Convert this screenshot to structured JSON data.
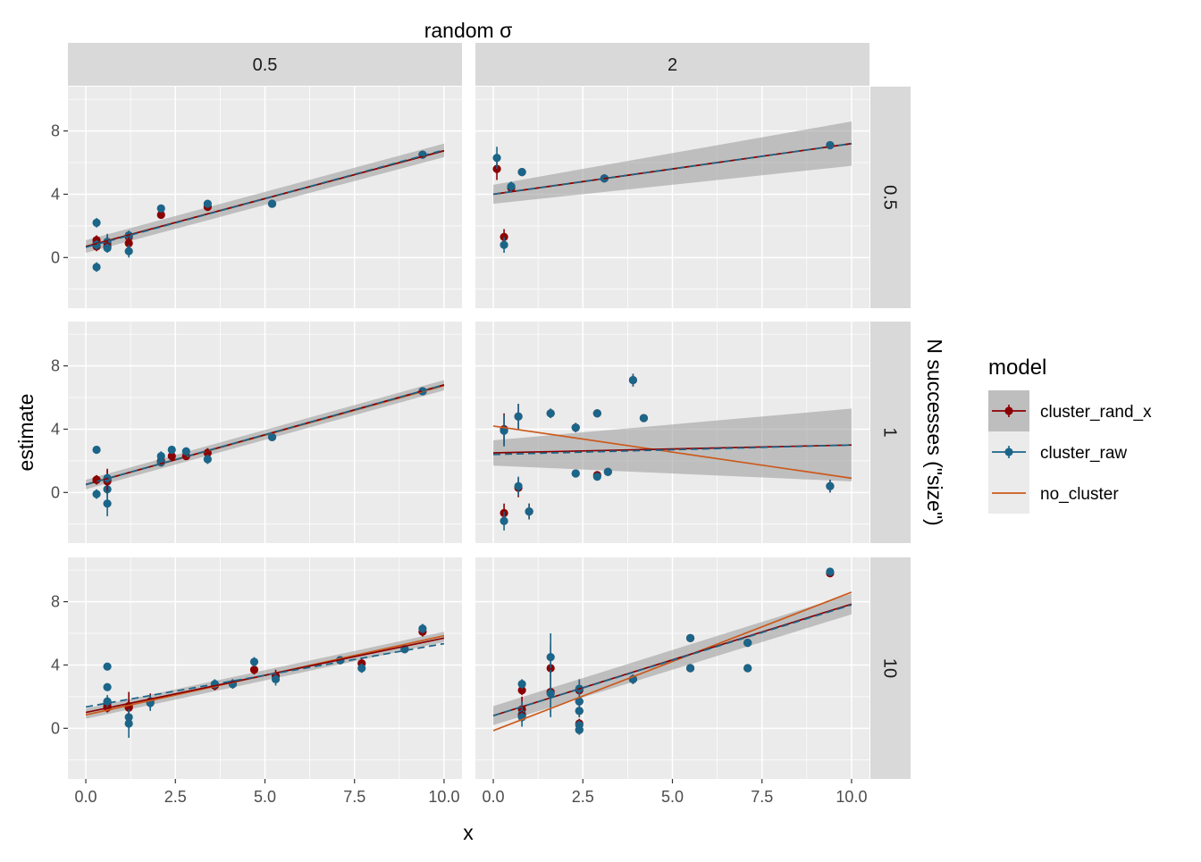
{
  "chart_data": {
    "type": "scatter",
    "title": "",
    "top_strip_title": "random σ",
    "right_strip_title": "N successes (\"size\")",
    "xlabel": "x",
    "ylabel": "estimate",
    "xlim": [
      -0.5,
      10.5
    ],
    "ylim": [
      -3.2,
      10.8
    ],
    "x_ticks": [
      "0.0",
      "2.5",
      "5.0",
      "7.5",
      "10.0"
    ],
    "x_tick_values": [
      0,
      2.5,
      5,
      7.5,
      10
    ],
    "y_ticks": [
      "0",
      "4",
      "8"
    ],
    "y_tick_values": [
      0,
      4,
      8
    ],
    "columns": [
      "0.5",
      "2"
    ],
    "rows": [
      "0.5",
      "1",
      "10"
    ],
    "legend": {
      "title": "model",
      "position": "right",
      "entries": [
        {
          "label": "cluster_rand_x",
          "color": "#8B0000"
        },
        {
          "label": "cluster_raw",
          "color": "#1B6589"
        },
        {
          "label": "no_cluster",
          "color": "#CC5A1C"
        }
      ]
    },
    "colors": {
      "cluster_rand_x": "#8B0000",
      "cluster_raw": "#1B6589",
      "no_cluster": "#CC5A1C",
      "panel_bg": "#EBEBEB",
      "strip_bg": "#D9D9D9",
      "ribbon": "#999999"
    },
    "panels": [
      {
        "col": "0.5",
        "row": "0.5",
        "points": [
          {
            "x": 0.3,
            "rand": 1.1,
            "raw": 2.2,
            "err": 0.3
          },
          {
            "x": 0.3,
            "rand": 0.7,
            "raw": -0.6,
            "err": 0.3
          },
          {
            "x": 0.3,
            "rand": 0.9,
            "raw": 0.8,
            "err": 0.3
          },
          {
            "x": 0.6,
            "rand": 0.9,
            "raw": 1.0,
            "err": 0.5
          },
          {
            "x": 0.6,
            "rand": 0.7,
            "raw": 0.6,
            "err": 0.3
          },
          {
            "x": 1.2,
            "rand": 1.3,
            "raw": 1.4,
            "err": 0.3
          },
          {
            "x": 1.2,
            "rand": 0.9,
            "raw": 0.4,
            "err": 0.4
          },
          {
            "x": 2.1,
            "rand": 2.7,
            "raw": 3.1,
            "err": 0.2
          },
          {
            "x": 3.4,
            "rand": 3.2,
            "raw": 3.4,
            "err": 0.2
          },
          {
            "x": 5.2,
            "rand": 3.4,
            "raw": 3.4,
            "err": 0.2
          },
          {
            "x": 9.4,
            "rand": 6.5,
            "raw": 6.5,
            "err": 0.2
          }
        ],
        "lines": {
          "cluster_rand_x": [
            0.7,
            6.75
          ],
          "cluster_raw": [
            0.65,
            6.8
          ],
          "no_cluster": [
            0.7,
            6.75
          ]
        },
        "ribbon": {
          "lo0": 0.3,
          "hi0": 1.1,
          "lo1": 6.35,
          "hi1": 7.2
        }
      },
      {
        "col": "2",
        "row": "0.5",
        "points": [
          {
            "x": 0.1,
            "rand": 5.6,
            "raw": 6.3,
            "err": 0.7
          },
          {
            "x": 0.3,
            "rand": 1.3,
            "raw": 0.8,
            "err": 0.5
          },
          {
            "x": 0.5,
            "rand": 4.4,
            "raw": 4.5,
            "err": 0.3
          },
          {
            "x": 0.8,
            "rand": 5.4,
            "raw": 5.4,
            "err": 0.2
          },
          {
            "x": 3.1,
            "rand": 5.0,
            "raw": 5.0,
            "err": 0.2
          },
          {
            "x": 9.4,
            "rand": 7.1,
            "raw": 7.1,
            "err": 0.2
          }
        ],
        "lines": {
          "cluster_rand_x": [
            4.0,
            7.2
          ],
          "cluster_raw": [
            4.0,
            7.2
          ],
          "no_cluster": [
            4.0,
            7.2
          ]
        },
        "ribbon": {
          "lo0": 3.4,
          "hi0": 4.6,
          "lo1": 5.8,
          "hi1": 8.6
        }
      },
      {
        "col": "0.5",
        "row": "1",
        "points": [
          {
            "x": 0.3,
            "rand": 0.8,
            "raw": 2.7,
            "err": 0.2
          },
          {
            "x": 0.3,
            "rand": 0.8,
            "raw": -0.1,
            "err": 0.3
          },
          {
            "x": 0.6,
            "rand": 0.8,
            "raw": 0.2,
            "err": 0.6
          },
          {
            "x": 0.6,
            "rand": 0.7,
            "raw": -0.7,
            "err": 0.8
          },
          {
            "x": 0.6,
            "rand": 0.8,
            "raw": 0.9,
            "err": 0.3
          },
          {
            "x": 2.1,
            "rand": 2.0,
            "raw": 2.3,
            "err": 0.3
          },
          {
            "x": 2.1,
            "rand": 1.9,
            "raw": 1.9,
            "err": 0.2
          },
          {
            "x": 2.4,
            "rand": 2.3,
            "raw": 2.7,
            "err": 0.2
          },
          {
            "x": 2.8,
            "rand": 2.3,
            "raw": 2.6,
            "err": 0.2
          },
          {
            "x": 3.4,
            "rand": 2.5,
            "raw": 2.1,
            "err": 0.3
          },
          {
            "x": 5.2,
            "rand": 3.5,
            "raw": 3.5,
            "err": 0.2
          },
          {
            "x": 9.4,
            "rand": 6.4,
            "raw": 6.4,
            "err": 0.2
          }
        ],
        "lines": {
          "cluster_rand_x": [
            0.5,
            6.8
          ],
          "cluster_raw": [
            0.5,
            6.8
          ],
          "no_cluster": [
            0.5,
            6.75
          ]
        },
        "ribbon": {
          "lo0": 0.2,
          "hi0": 0.8,
          "lo1": 6.45,
          "hi1": 7.1
        }
      },
      {
        "col": "2",
        "row": "1",
        "points": [
          {
            "x": 0.3,
            "rand": -1.3,
            "raw": -1.8,
            "err": 0.6
          },
          {
            "x": 0.3,
            "rand": 4.0,
            "raw": 3.9,
            "err": 1.0
          },
          {
            "x": 0.7,
            "rand": 0.3,
            "raw": 0.4,
            "err": 0.6
          },
          {
            "x": 0.7,
            "rand": 4.8,
            "raw": 4.8,
            "err": 0.8
          },
          {
            "x": 1.0,
            "rand": -1.2,
            "raw": -1.2,
            "err": 0.5
          },
          {
            "x": 1.6,
            "rand": 5.0,
            "raw": 5.0,
            "err": 0.3
          },
          {
            "x": 2.3,
            "rand": 1.2,
            "raw": 1.2,
            "err": 0.2
          },
          {
            "x": 2.3,
            "rand": 4.1,
            "raw": 4.1,
            "err": 0.3
          },
          {
            "x": 2.9,
            "rand": 1.1,
            "raw": 1.0,
            "err": 0.2
          },
          {
            "x": 2.9,
            "rand": 5.0,
            "raw": 5.0,
            "err": 0.2
          },
          {
            "x": 3.2,
            "rand": 1.3,
            "raw": 1.3,
            "err": 0.2
          },
          {
            "x": 3.9,
            "rand": 7.1,
            "raw": 7.1,
            "err": 0.4
          },
          {
            "x": 4.2,
            "rand": 4.7,
            "raw": 4.7,
            "err": 0.2
          },
          {
            "x": 9.4,
            "rand": 0.4,
            "raw": 0.4,
            "err": 0.4
          }
        ],
        "lines": {
          "cluster_rand_x": [
            2.5,
            3.0
          ],
          "cluster_raw": [
            2.4,
            3.0
          ],
          "no_cluster": [
            4.2,
            0.9
          ]
        },
        "ribbon": {
          "lo0": 1.7,
          "hi0": 3.3,
          "lo1": 0.7,
          "hi1": 5.3
        }
      },
      {
        "col": "0.5",
        "row": "10",
        "points": [
          {
            "x": 0.6,
            "rand": 1.6,
            "raw": 3.9,
            "err": 0.2
          },
          {
            "x": 0.6,
            "rand": 1.3,
            "raw": 2.6,
            "err": 0.2
          },
          {
            "x": 0.6,
            "rand": 1.4,
            "raw": 1.7,
            "err": 0.4
          },
          {
            "x": 1.2,
            "rand": 1.3,
            "raw": 0.7,
            "err": 0.5
          },
          {
            "x": 1.2,
            "rand": 1.4,
            "raw": 0.3,
            "err": 0.9
          },
          {
            "x": 1.8,
            "rand": 1.7,
            "raw": 1.6,
            "err": 0.5
          },
          {
            "x": 3.6,
            "rand": 2.7,
            "raw": 2.8,
            "err": 0.3
          },
          {
            "x": 4.1,
            "rand": 2.8,
            "raw": 2.8,
            "err": 0.3
          },
          {
            "x": 4.7,
            "rand": 3.7,
            "raw": 4.2,
            "err": 0.3
          },
          {
            "x": 5.3,
            "rand": 3.3,
            "raw": 3.1,
            "err": 0.4
          },
          {
            "x": 7.1,
            "rand": 4.3,
            "raw": 4.3,
            "err": 0.2
          },
          {
            "x": 7.7,
            "rand": 4.1,
            "raw": 3.8,
            "err": 0.3
          },
          {
            "x": 8.9,
            "rand": 5.0,
            "raw": 5.0,
            "err": 0.2
          },
          {
            "x": 9.4,
            "rand": 6.1,
            "raw": 6.3,
            "err": 0.3
          }
        ],
        "lines": {
          "cluster_rand_x": [
            1.0,
            5.7
          ],
          "cluster_raw": [
            1.35,
            5.35
          ],
          "no_cluster": [
            0.85,
            5.85
          ]
        },
        "ribbon": {
          "lo0": 0.6,
          "hi0": 1.25,
          "lo1": 5.45,
          "hi1": 6.1
        }
      },
      {
        "col": "2",
        "row": "10",
        "points": [
          {
            "x": 0.8,
            "rand": 2.4,
            "raw": 2.8,
            "err": 0.3
          },
          {
            "x": 0.8,
            "rand": 1.2,
            "raw": 0.9,
            "err": 0.8
          },
          {
            "x": 0.8,
            "rand": 0.8,
            "raw": 0.7,
            "err": 0.3
          },
          {
            "x": 1.6,
            "rand": 3.8,
            "raw": 4.5,
            "err": 1.5
          },
          {
            "x": 1.6,
            "rand": 2.3,
            "raw": 2.2,
            "err": 1.5
          },
          {
            "x": 2.4,
            "rand": 2.4,
            "raw": 2.5,
            "err": 0.6
          },
          {
            "x": 2.4,
            "rand": 1.7,
            "raw": 1.7,
            "err": 0.3
          },
          {
            "x": 2.4,
            "rand": 1.1,
            "raw": 1.1,
            "err": 0.4
          },
          {
            "x": 2.4,
            "rand": 0.3,
            "raw": 0.2,
            "err": 0.3
          },
          {
            "x": 2.4,
            "rand": -0.1,
            "raw": -0.1,
            "err": 0.3
          },
          {
            "x": 3.9,
            "rand": 3.1,
            "raw": 3.1,
            "err": 0.3
          },
          {
            "x": 5.5,
            "rand": 5.7,
            "raw": 5.7,
            "err": 0.2
          },
          {
            "x": 5.5,
            "rand": 3.8,
            "raw": 3.8,
            "err": 0.2
          },
          {
            "x": 7.1,
            "rand": 5.4,
            "raw": 5.4,
            "err": 0.2
          },
          {
            "x": 7.1,
            "rand": 3.8,
            "raw": 3.8,
            "err": 0.2
          },
          {
            "x": 9.4,
            "rand": 9.8,
            "raw": 9.9,
            "err": 0.2
          }
        ],
        "lines": {
          "cluster_rand_x": [
            0.8,
            7.85
          ],
          "cluster_raw": [
            0.8,
            7.8
          ],
          "no_cluster": [
            -0.15,
            8.6
          ]
        },
        "ribbon": {
          "lo0": 0.2,
          "hi0": 1.4,
          "lo1": 7.2,
          "hi1": 8.5
        }
      }
    ]
  }
}
